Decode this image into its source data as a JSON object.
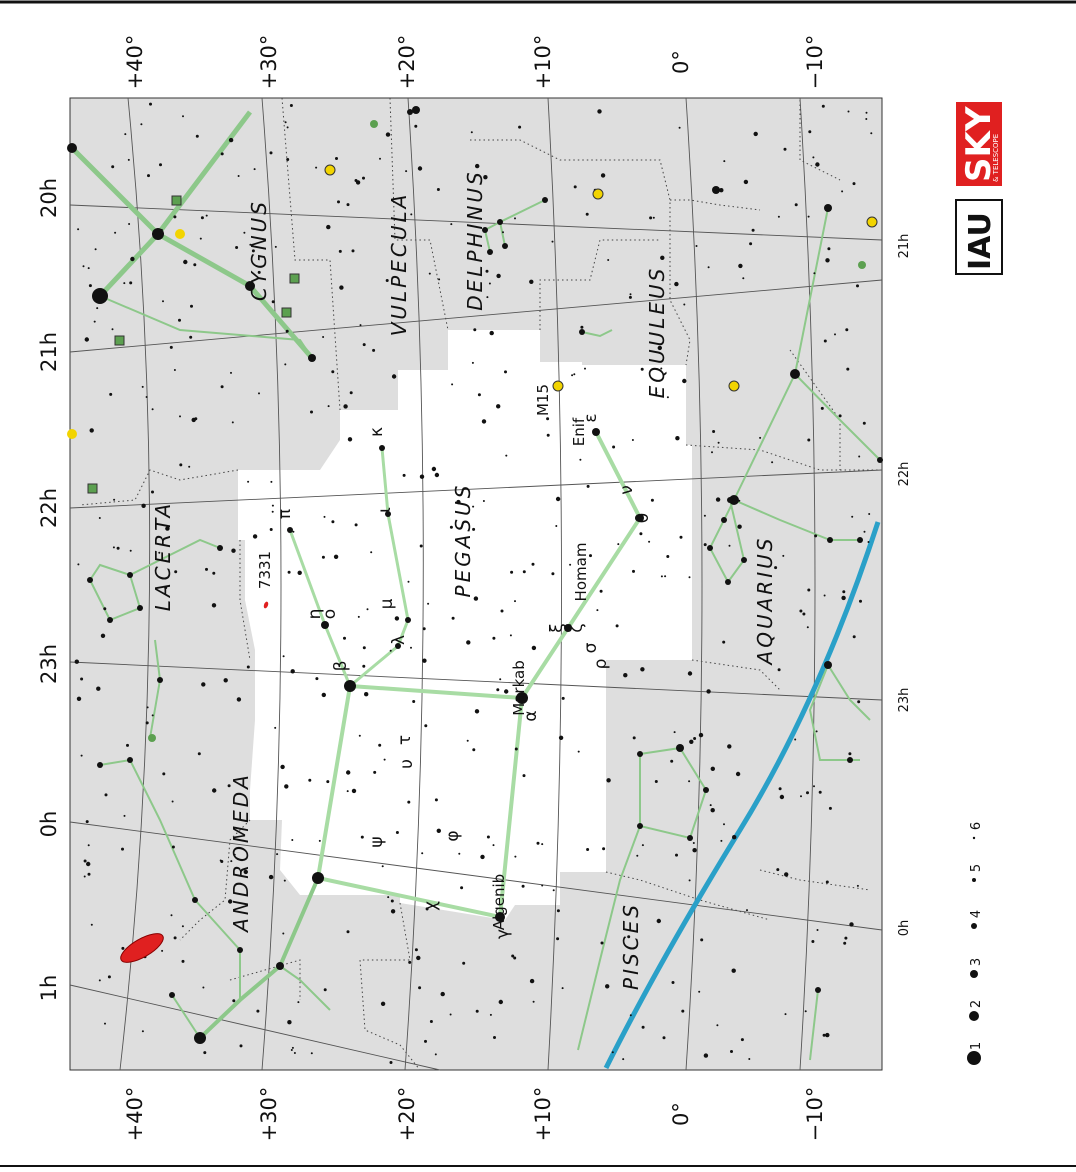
{
  "chart_title": "",
  "declination_labels_top": [
    "+40°",
    "+30°",
    "+20°",
    "+10°",
    "0°",
    "−10°"
  ],
  "declination_labels_bottom": [
    "+40°",
    "+30°",
    "+20°",
    "+10°",
    "0°",
    "−10°"
  ],
  "ra_labels_left": [
    "20h",
    "21h",
    "22h",
    "23h",
    "0h",
    "1h"
  ],
  "ra_labels_right": [
    "21h",
    "22h",
    "23h",
    "0h"
  ],
  "constellations": [
    "CYGNUS",
    "VULPECULA",
    "DELPHINUS",
    "EQUULEUS",
    "LACERTA",
    "PEGASUS",
    "ANDROMEDA",
    "AQUARIUS",
    "PISCES"
  ],
  "star_names": [
    "Enif",
    "Homam",
    "Markab",
    "Algenib"
  ],
  "greek_labels": [
    "κ",
    "ι",
    "π",
    "η",
    "ο",
    "λ",
    "μ",
    "β",
    "ε",
    "ν",
    "θ",
    "ξ",
    "ζ",
    "σ",
    "ρ",
    "α",
    "υ",
    "τ",
    "ψ",
    "φ",
    "χ",
    "γ"
  ],
  "deep_sky": [
    "M15",
    "7331"
  ],
  "magnitude_scale": [
    "1",
    "2",
    "3",
    "4",
    "5",
    "6"
  ],
  "logos": {
    "sky": "SKY",
    "sky_sub": "& TELESCOPE",
    "iau": "IAU"
  },
  "colors": {
    "background_sky": "#dedede",
    "pegasus_region": "#ffffff",
    "stick_figure": "#8dc88a",
    "pegasus_figure": "#a8dca4",
    "ecliptic": "#2aa0c8",
    "grid": "#555555",
    "galaxy": "#e02020",
    "cluster": "#f2d400",
    "nebula": "#5ca050"
  }
}
